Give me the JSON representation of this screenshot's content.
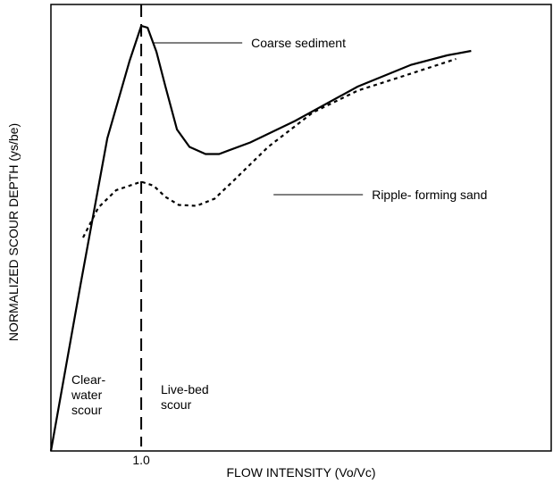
{
  "chart_data": {
    "type": "line",
    "xlabel": "FLOW INTENSITY (Vo/Vc)",
    "ylabel": "NORMALIZED SCOUR DEPTH (ys/be)",
    "xlim": [
      0.5,
      3.27
    ],
    "ylim": [
      0,
      1
    ],
    "xticks": [
      {
        "value": 1,
        "label": "1.0"
      }
    ],
    "series": [
      {
        "name": "Coarse sediment",
        "color": "#000000",
        "style": "solid",
        "x": [
          0.5,
          0.663,
          0.812,
          0.936,
          1.0,
          1.035,
          1.084,
          1.134,
          1.198,
          1.267,
          1.356,
          1.431,
          1.604,
          1.851,
          2.198,
          2.495,
          2.693,
          2.827
        ],
        "values": [
          0,
          0.371,
          0.7,
          0.874,
          0.952,
          0.948,
          0.894,
          0.816,
          0.72,
          0.681,
          0.665,
          0.665,
          0.691,
          0.739,
          0.816,
          0.865,
          0.886,
          0.896
        ]
      },
      {
        "name": "Ripple- forming sand",
        "color": "#000000",
        "style": "dotted",
        "x": [
          0.678,
          0.762,
          0.861,
          1.0,
          1.069,
          1.134,
          1.208,
          1.307,
          1.406,
          1.505,
          1.703,
          1.95,
          2.198,
          2.446,
          2.743
        ],
        "values": [
          0.478,
          0.545,
          0.584,
          0.603,
          0.594,
          0.569,
          0.551,
          0.549,
          0.565,
          0.603,
          0.681,
          0.758,
          0.807,
          0.839,
          0.878
        ]
      }
    ],
    "regions": [
      [
        "Clear-",
        "water",
        "scour"
      ],
      [
        "Live-bed",
        "scour"
      ]
    ]
  }
}
